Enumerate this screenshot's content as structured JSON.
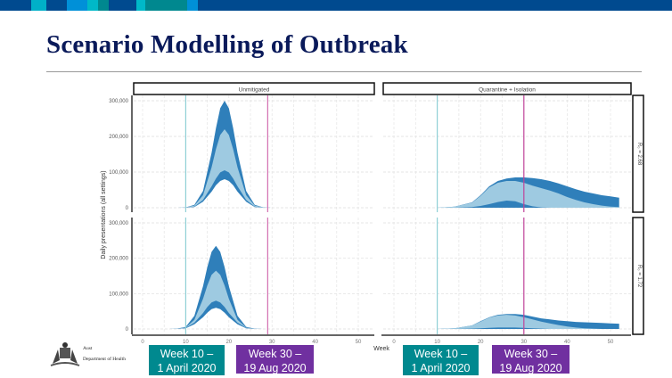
{
  "slide": {
    "title": "Scenario Modelling of Outbreak",
    "logo": {
      "line1": "Aust",
      "line2": "Department of Health"
    },
    "annotations": [
      {
        "line1": "Week 10 –",
        "line2": "1 April 2020",
        "color": "#00898f"
      },
      {
        "line1": "Week 30 –",
        "line2": "19 Aug 2020",
        "color": "#7030a0"
      }
    ],
    "header_colors": [
      "#004a8f",
      "#00b0c8",
      "#0090d8",
      "#00888f"
    ]
  },
  "chart_data": {
    "type": "area",
    "subtype": "faceted ribbon (uncertainty bands)",
    "xlabel": "Week",
    "ylabel": "Daily presentations (all settings)",
    "xlim": [
      0,
      54
    ],
    "ylim": [
      0,
      310000
    ],
    "xticks": [
      0,
      10,
      20,
      30,
      40,
      50
    ],
    "yticks": [
      0,
      100000,
      200000,
      300000
    ],
    "ytick_labels": [
      "0",
      "100,000",
      "200,000",
      "300,000"
    ],
    "grid": true,
    "columns": [
      "Unmitigated",
      "Quarantine + Isolation"
    ],
    "rows": [
      "R₀ = 2.68",
      "R₀ = 1.72"
    ],
    "band_colors": {
      "outer": "#2f7fba",
      "inner": "#9ecae1"
    },
    "reference_lines": [
      {
        "week": 10,
        "color": "#8fcfd6"
      },
      {
        "week": 29,
        "color": "#d36fb0",
        "panel_col": 0
      },
      {
        "week": 30,
        "color": "#c0449a",
        "panel_col": 1
      }
    ],
    "panels": [
      {
        "row": 0,
        "col": 0,
        "weeks": [
          8,
          10,
          12,
          14,
          16,
          17,
          18,
          19,
          20,
          21,
          22,
          24,
          26,
          28,
          30
        ],
        "outer_upper": [
          0,
          1000,
          8000,
          47000,
          154000,
          223000,
          279000,
          300000,
          279000,
          223000,
          154000,
          47000,
          8000,
          1000,
          0
        ],
        "inner_upper": [
          0,
          1000,
          6000,
          35000,
          113000,
          164000,
          204000,
          220000,
          204000,
          164000,
          113000,
          35000,
          6000,
          1000,
          0
        ],
        "inner_lower": [
          0,
          500,
          3000,
          22000,
          60000,
          82000,
          99000,
          105000,
          99000,
          82000,
          60000,
          22000,
          3000,
          500,
          0
        ],
        "outer_lower": [
          0,
          300,
          2000,
          17000,
          45000,
          63000,
          75000,
          80000,
          75000,
          63000,
          45000,
          17000,
          2000,
          300,
          0
        ]
      },
      {
        "row": 0,
        "col": 1,
        "weeks": [
          10,
          14,
          18,
          20,
          22,
          24,
          26,
          28,
          30,
          32,
          34,
          36,
          38,
          40,
          42,
          44,
          46,
          48,
          50,
          52
        ],
        "outer_upper": [
          0,
          3000,
          15000,
          35000,
          60000,
          75000,
          82000,
          85000,
          85000,
          83000,
          80000,
          75000,
          68000,
          60000,
          52000,
          45000,
          40000,
          35000,
          32000,
          28000
        ],
        "inner_upper": [
          0,
          3000,
          14000,
          33000,
          57000,
          70000,
          75000,
          75000,
          70000,
          62000,
          55000,
          48000,
          40000,
          30000,
          22000,
          15000,
          10000,
          6000,
          3000,
          2000
        ],
        "inner_lower": [
          0,
          0,
          2000,
          5000,
          10000,
          16000,
          20000,
          18000,
          10000,
          4000,
          1000,
          0,
          0,
          0,
          0,
          0,
          0,
          0,
          0,
          0
        ],
        "outer_lower": [
          0,
          0,
          0,
          0,
          0,
          0,
          0,
          0,
          0,
          0,
          0,
          0,
          0,
          0,
          0,
          0,
          0,
          0,
          0,
          0
        ]
      },
      {
        "row": 1,
        "col": 0,
        "weeks": [
          6,
          8,
          10,
          12,
          14,
          15,
          16,
          17,
          18,
          19,
          20,
          22,
          24,
          26,
          28
        ],
        "outer_upper": [
          0,
          1000,
          6000,
          37000,
          121000,
          175000,
          218000,
          235000,
          218000,
          175000,
          121000,
          37000,
          6000,
          1000,
          0
        ],
        "inner_upper": [
          0,
          1000,
          4000,
          26000,
          85000,
          123000,
          153000,
          165000,
          153000,
          123000,
          85000,
          26000,
          4000,
          1000,
          0
        ],
        "inner_lower": [
          0,
          500,
          3000,
          18000,
          45000,
          62000,
          75000,
          80000,
          75000,
          62000,
          45000,
          18000,
          3000,
          500,
          0
        ],
        "outer_lower": [
          0,
          300,
          2000,
          13000,
          33000,
          46000,
          56000,
          60000,
          56000,
          46000,
          33000,
          13000,
          2000,
          300,
          0
        ]
      },
      {
        "row": 1,
        "col": 1,
        "weeks": [
          10,
          14,
          18,
          20,
          22,
          24,
          26,
          28,
          30,
          32,
          34,
          36,
          38,
          40,
          42,
          44,
          46,
          48,
          50,
          52
        ],
        "outer_upper": [
          0,
          2000,
          10000,
          22000,
          33000,
          40000,
          42000,
          42000,
          40000,
          35000,
          30000,
          27000,
          24000,
          22000,
          20000,
          19000,
          18000,
          17000,
          16000,
          15000
        ],
        "inner_upper": [
          0,
          2000,
          10000,
          21000,
          32000,
          38000,
          40000,
          38000,
          33000,
          27000,
          21000,
          16000,
          11000,
          7000,
          4000,
          2000,
          1000,
          0,
          0,
          0
        ],
        "inner_lower": [
          0,
          0,
          1000,
          2000,
          3000,
          4000,
          4000,
          4000,
          3000,
          2000,
          1000,
          0,
          0,
          0,
          0,
          0,
          0,
          0,
          0,
          0
        ],
        "outer_lower": [
          0,
          0,
          0,
          0,
          0,
          0,
          0,
          0,
          0,
          0,
          0,
          0,
          0,
          0,
          0,
          0,
          0,
          0,
          0,
          0
        ]
      }
    ]
  }
}
